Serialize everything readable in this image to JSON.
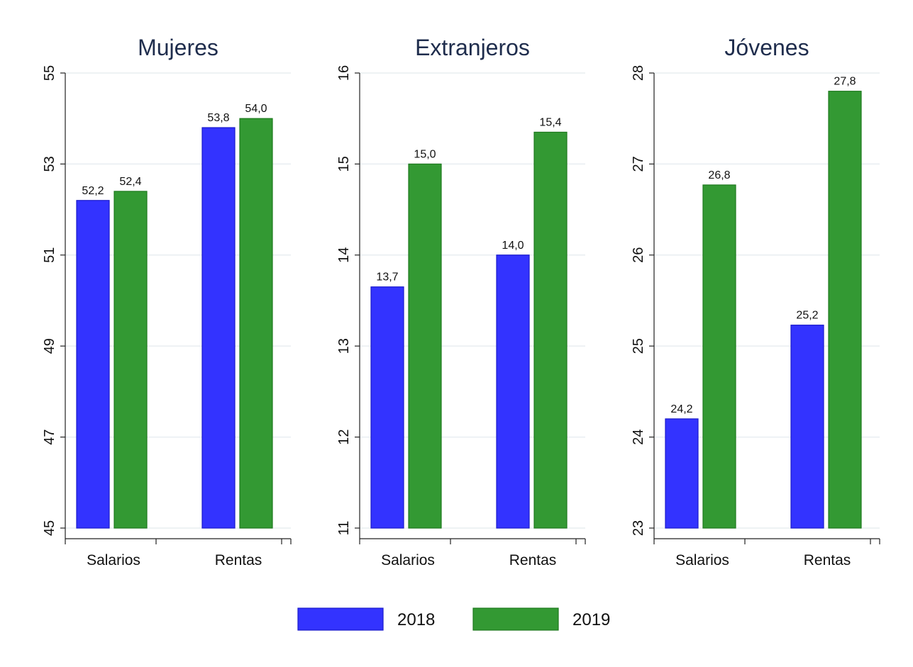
{
  "chart_data": [
    {
      "type": "bar",
      "title": "Mujeres",
      "categories": [
        "Salarios",
        "Rentas"
      ],
      "series": [
        {
          "name": "2018",
          "values": [
            52.2,
            53.8
          ],
          "labels": [
            "52,2",
            "53,8"
          ]
        },
        {
          "name": "2019",
          "values": [
            52.4,
            54.0
          ],
          "labels": [
            "52,4",
            "54,0"
          ]
        }
      ],
      "ylim": [
        45,
        55
      ],
      "yticks": [
        45,
        47,
        49,
        51,
        53,
        55
      ],
      "ytick_labels": [
        "45",
        "47",
        "49",
        "51",
        "53",
        "55"
      ],
      "grid": true
    },
    {
      "type": "bar",
      "title": "Extranjeros",
      "categories": [
        "Salarios",
        "Rentas"
      ],
      "series": [
        {
          "name": "2018",
          "values": [
            13.65,
            14.0
          ],
          "labels": [
            "13,7",
            "14,0"
          ]
        },
        {
          "name": "2019",
          "values": [
            15.0,
            15.35
          ],
          "labels": [
            "15,0",
            "15,4"
          ]
        }
      ],
      "ylim": [
        11,
        16
      ],
      "yticks": [
        11,
        12,
        13,
        14,
        15,
        16
      ],
      "ytick_labels": [
        "11",
        "12",
        "13",
        "14",
        "15",
        "16"
      ],
      "grid": true
    },
    {
      "type": "bar",
      "title": "Jóvenes",
      "categories": [
        "Salarios",
        "Rentas"
      ],
      "series": [
        {
          "name": "2018",
          "values": [
            24.2,
            25.23
          ],
          "labels": [
            "24,2",
            "25,2"
          ]
        },
        {
          "name": "2019",
          "values": [
            26.77,
            27.8
          ],
          "labels": [
            "26,8",
            "27,8"
          ]
        }
      ],
      "ylim": [
        23,
        28
      ],
      "yticks": [
        23,
        24,
        25,
        26,
        27,
        28
      ],
      "ytick_labels": [
        "23",
        "24",
        "25",
        "26",
        "27",
        "28"
      ],
      "grid": true
    }
  ],
  "legend": {
    "placement": "bottom",
    "items": [
      {
        "name": "2018",
        "color": "#3333ff",
        "border": "#1a1acc"
      },
      {
        "name": "2019",
        "color": "#339933",
        "border": "#1f7a1f"
      }
    ]
  }
}
